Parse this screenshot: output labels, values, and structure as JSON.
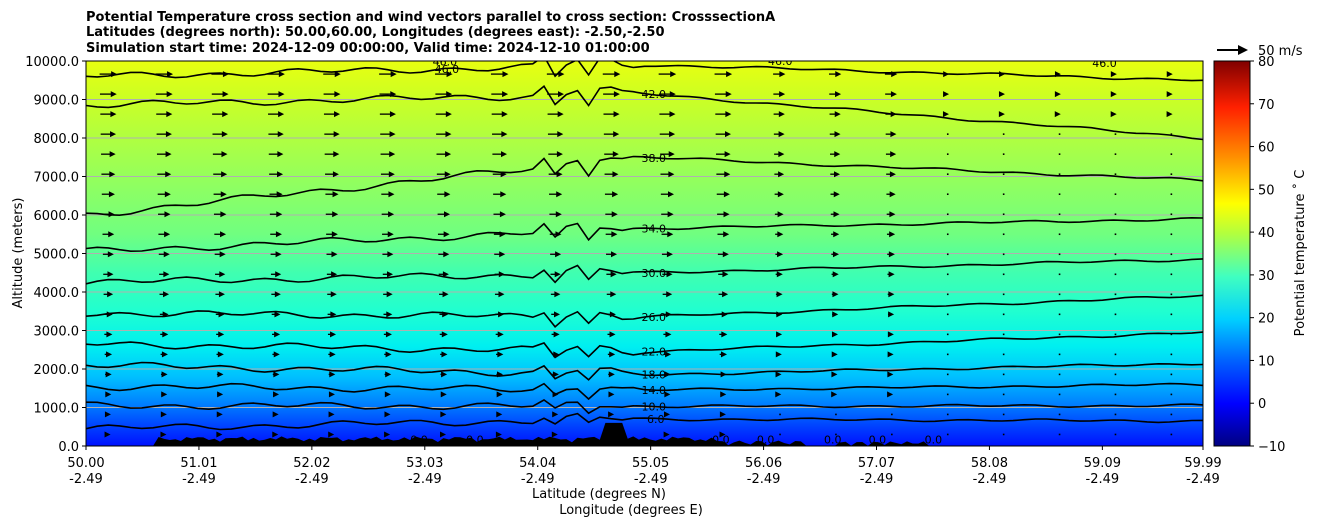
{
  "chart_data": {
    "type": "cross-section",
    "title_lines": [
      "Potential Temperature cross section and wind vectors parallel to cross section: CrosssectionA",
      "Latitudes (degrees north): 50.00,60.00, Longitudes (degrees east): -2.50,-2.50",
      "Simulation start time: 2024-12-09 00:00:00, Valid time: 2024-12-10 01:00:00"
    ],
    "xlabel_lat": "Latitude (degrees N)",
    "xlabel_lon": "Longitude (degrees E)",
    "ylabel": "Altitude (meters)",
    "colorbar_label": "Potential temperature $^\\circ$C",
    "colorbar_label_text": "Potential temperature ˚ C",
    "quiver_key": "50 m/s",
    "xlim": [
      50.0,
      59.99
    ],
    "ylim": [
      0,
      10000
    ],
    "x_ticks": [
      {
        "lat": "50.00",
        "lon": "-2.49",
        "v": 50.0
      },
      {
        "lat": "51.01",
        "lon": "-2.49",
        "v": 51.01
      },
      {
        "lat": "52.02",
        "lon": "-2.49",
        "v": 52.02
      },
      {
        "lat": "53.03",
        "lon": "-2.49",
        "v": 53.03
      },
      {
        "lat": "54.04",
        "lon": "-2.49",
        "v": 54.04
      },
      {
        "lat": "55.05",
        "lon": "-2.49",
        "v": 55.05
      },
      {
        "lat": "56.06",
        "lon": "-2.49",
        "v": 56.06
      },
      {
        "lat": "57.07",
        "lon": "-2.49",
        "v": 57.07
      },
      {
        "lat": "58.08",
        "lon": "-2.49",
        "v": 58.08
      },
      {
        "lat": "59.09",
        "lon": "-2.49",
        "v": 59.09
      },
      {
        "lat": "59.99",
        "lon": "-2.49",
        "v": 59.99
      }
    ],
    "y_ticks": [
      "0.0",
      "1000.0",
      "2000.0",
      "3000.0",
      "4000.0",
      "5000.0",
      "6000.0",
      "7000.0",
      "8000.0",
      "9000.0",
      "10000.0"
    ],
    "y_tick_values": [
      0,
      1000,
      2000,
      3000,
      4000,
      5000,
      6000,
      7000,
      8000,
      9000,
      10000
    ],
    "colorbar_range": [
      -10,
      80
    ],
    "colorbar_ticks": [
      "−10",
      "0",
      "10",
      "20",
      "30",
      "40",
      "50",
      "60",
      "70",
      "80"
    ],
    "colorbar_tick_values": [
      -10,
      0,
      10,
      20,
      30,
      40,
      50,
      60,
      70,
      80
    ],
    "contours": [
      {
        "level": 6.0,
        "label": "6.0",
        "label_x": 55.0,
        "alt_west": 450,
        "alt_mid": 700,
        "alt_east": 650
      },
      {
        "level": 10.0,
        "label": "10.0",
        "label_x": 54.95,
        "alt_west": 1050,
        "alt_mid": 1030,
        "alt_east": 1050
      },
      {
        "level": 14.0,
        "label": "14.0",
        "label_x": 54.95,
        "alt_west": 1550,
        "alt_mid": 1450,
        "alt_east": 1600
      },
      {
        "level": 18.0,
        "label": "18.0",
        "label_x": 54.95,
        "alt_west": 2100,
        "alt_mid": 1850,
        "alt_east": 2150
      },
      {
        "level": 22.0,
        "label": "22.0",
        "label_x": 54.95,
        "alt_west": 2650,
        "alt_mid": 2450,
        "alt_east": 2950
      },
      {
        "level": 26.0,
        "label": "26.0",
        "label_x": 54.95,
        "alt_west": 3450,
        "alt_mid": 3350,
        "alt_east": 3900
      },
      {
        "level": 30.0,
        "label": "30.0",
        "label_x": 54.95,
        "alt_west": 4250,
        "alt_mid": 4500,
        "alt_east": 4850
      },
      {
        "level": 34.0,
        "label": "34.0",
        "label_x": 54.95,
        "alt_west": 5050,
        "alt_mid": 5650,
        "alt_east": 5900
      },
      {
        "level": 38.0,
        "label": "38.0",
        "label_x": 54.95,
        "alt_west": 6000,
        "alt_mid": 7500,
        "alt_east": 6900
      },
      {
        "level": 42.0,
        "label": "42.0",
        "label_x": 54.95,
        "alt_west": 8850,
        "alt_mid": 9150,
        "alt_east": 8000
      },
      {
        "level": 46.0,
        "label": "46.0",
        "label_x": 53.1,
        "alt_west": 9600,
        "alt_mid": 9900,
        "alt_east": 9500
      }
    ],
    "partial_labels": [
      "46.0",
      "0.0"
    ],
    "terrain_peak_alt": 600,
    "colormap": "jet",
    "grid": true
  }
}
